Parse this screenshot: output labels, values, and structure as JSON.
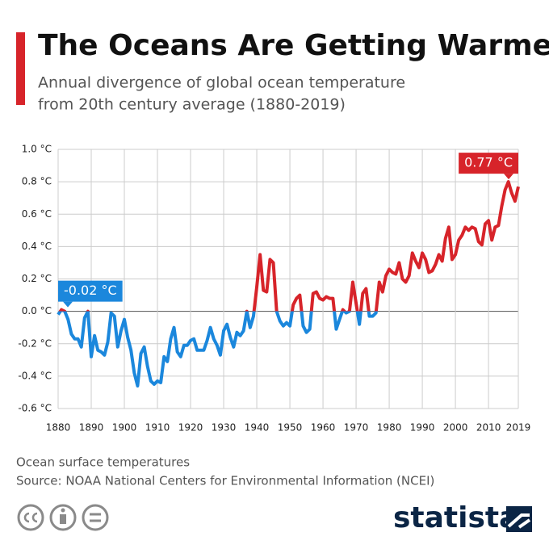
{
  "chart_data": {
    "type": "line",
    "title": "The Oceans Are Getting Warmer",
    "subtitle": [
      "Annual divergence of global ocean temperature",
      "from 20th century average (1880-2019)"
    ],
    "x": [
      1880,
      1881,
      1882,
      1883,
      1884,
      1885,
      1886,
      1887,
      1888,
      1889,
      1890,
      1891,
      1892,
      1893,
      1894,
      1895,
      1896,
      1897,
      1898,
      1899,
      1900,
      1901,
      1902,
      1903,
      1904,
      1905,
      1906,
      1907,
      1908,
      1909,
      1910,
      1911,
      1912,
      1913,
      1914,
      1915,
      1916,
      1917,
      1918,
      1919,
      1920,
      1921,
      1922,
      1923,
      1924,
      1925,
      1926,
      1927,
      1928,
      1929,
      1930,
      1931,
      1932,
      1933,
      1934,
      1935,
      1936,
      1937,
      1938,
      1939,
      1940,
      1941,
      1942,
      1943,
      1944,
      1945,
      1946,
      1947,
      1948,
      1949,
      1950,
      1951,
      1952,
      1953,
      1954,
      1955,
      1956,
      1957,
      1958,
      1959,
      1960,
      1961,
      1962,
      1963,
      1964,
      1965,
      1966,
      1967,
      1968,
      1969,
      1970,
      1971,
      1972,
      1973,
      1974,
      1975,
      1976,
      1977,
      1978,
      1979,
      1980,
      1981,
      1982,
      1983,
      1984,
      1985,
      1986,
      1987,
      1988,
      1989,
      1990,
      1991,
      1992,
      1993,
      1994,
      1995,
      1996,
      1997,
      1998,
      1999,
      2000,
      2001,
      2002,
      2003,
      2004,
      2005,
      2006,
      2007,
      2008,
      2009,
      2010,
      2011,
      2012,
      2013,
      2014,
      2015,
      2016,
      2017,
      2018,
      2019
    ],
    "values": [
      -0.02,
      0.01,
      0.0,
      -0.05,
      -0.14,
      -0.17,
      -0.17,
      -0.22,
      -0.04,
      0.0,
      -0.28,
      -0.15,
      -0.24,
      -0.25,
      -0.27,
      -0.19,
      -0.01,
      -0.03,
      -0.22,
      -0.12,
      -0.05,
      -0.16,
      -0.24,
      -0.38,
      -0.46,
      -0.26,
      -0.22,
      -0.34,
      -0.43,
      -0.45,
      -0.43,
      -0.44,
      -0.28,
      -0.31,
      -0.17,
      -0.1,
      -0.25,
      -0.28,
      -0.21,
      -0.21,
      -0.18,
      -0.17,
      -0.24,
      -0.24,
      -0.24,
      -0.18,
      -0.1,
      -0.17,
      -0.21,
      -0.27,
      -0.12,
      -0.08,
      -0.16,
      -0.22,
      -0.13,
      -0.15,
      -0.12,
      0.0,
      -0.1,
      -0.03,
      0.15,
      0.35,
      0.13,
      0.12,
      0.32,
      0.3,
      0.0,
      -0.06,
      -0.09,
      -0.07,
      -0.09,
      0.04,
      0.08,
      0.1,
      -0.09,
      -0.13,
      -0.11,
      0.11,
      0.12,
      0.08,
      0.07,
      0.09,
      0.08,
      0.08,
      -0.11,
      -0.05,
      0.01,
      -0.01,
      0.0,
      0.18,
      0.05,
      -0.08,
      0.11,
      0.14,
      -0.03,
      -0.03,
      -0.01,
      0.18,
      0.12,
      0.22,
      0.26,
      0.24,
      0.23,
      0.3,
      0.2,
      0.18,
      0.22,
      0.36,
      0.31,
      0.27,
      0.36,
      0.32,
      0.24,
      0.25,
      0.29,
      0.35,
      0.31,
      0.45,
      0.52,
      0.32,
      0.35,
      0.44,
      0.47,
      0.52,
      0.5,
      0.52,
      0.51,
      0.43,
      0.41,
      0.54,
      0.56,
      0.44,
      0.52,
      0.53,
      0.65,
      0.75,
      0.8,
      0.73,
      0.68,
      0.77
    ],
    "colors": {
      "above": "#d7242a",
      "below": "#1b87dc"
    },
    "xlim": [
      1880,
      2019
    ],
    "xticks": [
      1880,
      1890,
      1900,
      1910,
      1920,
      1930,
      1940,
      1950,
      1960,
      1970,
      1980,
      1990,
      2000,
      2010,
      2019
    ],
    "ylim": [
      -0.6,
      1.0
    ],
    "yticks": [
      {
        "value": -0.6,
        "label": "-0.6 °C"
      },
      {
        "value": -0.4,
        "label": "-0.4 °C"
      },
      {
        "value": -0.2,
        "label": "-0.2 °C"
      },
      {
        "value": 0,
        "label": "0.0 °C"
      },
      {
        "value": 0.2,
        "label": "0.2 °C"
      },
      {
        "value": 0.4,
        "label": "0.4 °C"
      },
      {
        "value": 0.6,
        "label": "0.6 °C"
      },
      {
        "value": 0.8,
        "label": "0.8 °C"
      },
      {
        "value": 1.0,
        "label": "1.0 °C"
      }
    ],
    "grid": true,
    "annotations": [
      {
        "x": 1880,
        "value": -0.02,
        "label": "-0.02 °C"
      },
      {
        "x": 2019,
        "value": 0.77,
        "label": "0.77 °C"
      }
    ],
    "notes": [
      "Ocean surface temperatures",
      "Source: NOAA National Centers for Environmental Information (NCEI)"
    ],
    "brand": "statista"
  }
}
